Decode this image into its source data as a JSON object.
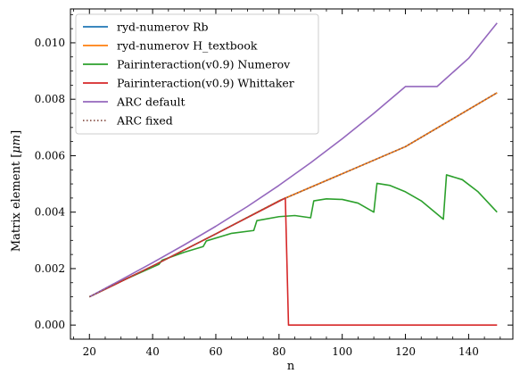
{
  "chart_data": {
    "type": "line",
    "title": "",
    "xlabel": "n",
    "ylabel": "Matrix element [",
    "ylabel_unit": "μm",
    "ylabel_close": "]",
    "xlim": [
      14,
      154
    ],
    "ylim": [
      -0.0005,
      0.0112
    ],
    "xticks": [
      20,
      40,
      60,
      80,
      100,
      120,
      140
    ],
    "xtick_labels": [
      "20",
      "40",
      "60",
      "80",
      "100",
      "120",
      "140"
    ],
    "yticks": [
      0.0,
      0.002,
      0.004,
      0.006,
      0.008,
      0.01
    ],
    "ytick_labels": [
      "0.000",
      "0.002",
      "0.004",
      "0.006",
      "0.008",
      "0.010"
    ],
    "grid": false,
    "legend_position": "top-left",
    "series": [
      {
        "name": "ryd-numerov Rb",
        "color": "#1f77b4",
        "style": "solid",
        "x": [
          20,
          40,
          60,
          80,
          100,
          120,
          149
        ],
        "y": [
          0.001,
          0.00209,
          0.00323,
          0.0044,
          0.00536,
          0.00632,
          0.00823
        ]
      },
      {
        "name": "ryd-numerov H_textbook",
        "color": "#ff7f0e",
        "style": "solid",
        "x": [
          20,
          40,
          60,
          80,
          100,
          120,
          149
        ],
        "y": [
          0.001,
          0.00209,
          0.00323,
          0.0044,
          0.00536,
          0.00632,
          0.00823
        ]
      },
      {
        "name": "Pairinteraction(v0.9) Numerov",
        "color": "#2ca02c",
        "style": "solid",
        "x": [
          20,
          30,
          42,
          43,
          50,
          56,
          57,
          65,
          72,
          73,
          80,
          85,
          90,
          91,
          95,
          100,
          105,
          110,
          111,
          115,
          120,
          125,
          132,
          133,
          138,
          143,
          149
        ],
        "y": [
          0.001,
          0.00155,
          0.00215,
          0.0023,
          0.00258,
          0.00278,
          0.00298,
          0.00325,
          0.00335,
          0.0037,
          0.00384,
          0.00388,
          0.0038,
          0.0044,
          0.00447,
          0.00445,
          0.00432,
          0.004,
          0.00502,
          0.00495,
          0.00472,
          0.0044,
          0.00375,
          0.00532,
          0.00515,
          0.00472,
          0.004
        ]
      },
      {
        "name": "Pairinteraction(v0.9) Whittaker",
        "color": "#d62728",
        "style": "solid",
        "x": [
          20,
          40,
          60,
          82,
          83,
          100,
          120,
          149
        ],
        "y": [
          0.001,
          0.00209,
          0.00323,
          0.0045,
          0.0,
          0.0,
          0.0,
          0.0
        ]
      },
      {
        "name": "ARC default",
        "color": "#9467bd",
        "style": "solid",
        "x": [
          20,
          30,
          40,
          50,
          60,
          70,
          80,
          90,
          100,
          110,
          120,
          130,
          140,
          149
        ],
        "y": [
          0.001,
          0.0016,
          0.00221,
          0.00284,
          0.0035,
          0.0042,
          0.00495,
          0.00575,
          0.0066,
          0.0075,
          0.00845,
          0.00845,
          0.00945,
          0.0107
        ]
      },
      {
        "name": "ARC fixed",
        "color": "#8c564b",
        "style": "dotted",
        "x": [
          20,
          40,
          60,
          80,
          100,
          120,
          149
        ],
        "y": [
          0.001,
          0.00209,
          0.00323,
          0.0044,
          0.00536,
          0.00632,
          0.00823
        ]
      }
    ]
  }
}
